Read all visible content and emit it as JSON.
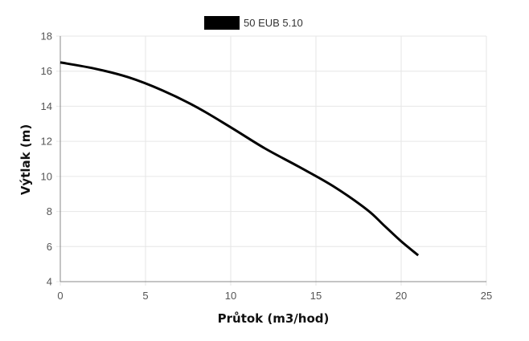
{
  "chart_data": {
    "type": "line",
    "title": "",
    "xlabel": "Průtok (m3/hod)",
    "ylabel": "Výtlak (m)",
    "xlim": [
      0,
      25
    ],
    "ylim": [
      4,
      18
    ],
    "xticks": [
      0,
      5,
      10,
      15,
      20,
      25
    ],
    "yticks": [
      4,
      6,
      8,
      10,
      12,
      14,
      16,
      18
    ],
    "grid": true,
    "legend_position": "top-center",
    "series": [
      {
        "name": "50 EUB 5.10",
        "color": "#000000",
        "x": [
          0,
          2,
          4,
          6,
          8,
          10,
          12,
          14,
          16,
          18,
          19,
          20,
          21
        ],
        "y": [
          16.5,
          16.15,
          15.65,
          14.9,
          13.95,
          12.8,
          11.6,
          10.55,
          9.45,
          8.1,
          7.2,
          6.3,
          5.5
        ]
      }
    ]
  }
}
